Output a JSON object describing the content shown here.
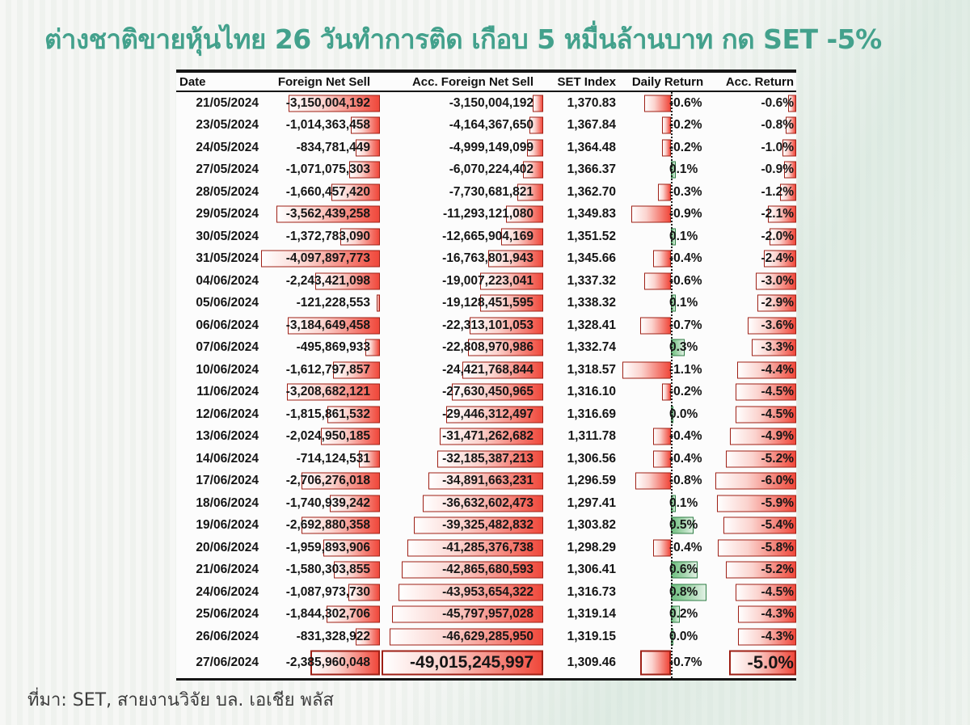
{
  "title": "ต่างชาติขายหุ้นไทย 26 วันทำการติด เกือบ 5 หมื่นล้านบาท กด SET -5%",
  "source_note": "ที่มา: SET, สายงานวิจัย บล. เอเชีย พลัส",
  "colors": {
    "title_teal": "#43a18c",
    "negative_bar": "#f0483b",
    "negative_bar_border": "#9e1f15",
    "positive_bar": "#6fbf80",
    "positive_bar_border": "#2e7d44",
    "background": "#f2f4f1",
    "text": "#161616"
  },
  "chart_data": {
    "type": "table",
    "title": "ต่างชาติขายหุ้นไทย 26 วันทำการติด เกือบ 5 หมื่นล้านบาท กด SET -5%",
    "columns": [
      "Date",
      "Foreign Net Sell",
      "Acc. Foreign Net Sell",
      "SET Index",
      "Daily Return",
      "Acc. Return"
    ],
    "data_bar_note": "red bars = negative magnitude, green bars = positive daily return, dotted zero axis in Daily Return column",
    "rows": [
      {
        "date": "21/05/2024",
        "net": "-3,150,004,192",
        "net_v": 3150004192,
        "acc": "-3,150,004,192",
        "acc_v": 3150004192,
        "set": "1,370.83",
        "dr": "-0.6%",
        "dr_v": -0.6,
        "ar": "-0.6%",
        "ar_v": 0.6
      },
      {
        "date": "23/05/2024",
        "net": "-1,014,363,458",
        "net_v": 1014363458,
        "acc": "-4,164,367,650",
        "acc_v": 4164367650,
        "set": "1,367.84",
        "dr": "-0.2%",
        "dr_v": -0.2,
        "ar": "-0.8%",
        "ar_v": 0.8
      },
      {
        "date": "24/05/2024",
        "net": "-834,781,449",
        "net_v": 834781449,
        "acc": "-4,999,149,099",
        "acc_v": 4999149099,
        "set": "1,364.48",
        "dr": "-0.2%",
        "dr_v": -0.2,
        "ar": "-1.0%",
        "ar_v": 1.0
      },
      {
        "date": "27/05/2024",
        "net": "-1,071,075,303",
        "net_v": 1071075303,
        "acc": "-6,070,224,402",
        "acc_v": 6070224402,
        "set": "1,366.37",
        "dr": "0.1%",
        "dr_v": 0.1,
        "ar": "-0.9%",
        "ar_v": 0.9
      },
      {
        "date": "28/05/2024",
        "net": "-1,660,457,420",
        "net_v": 1660457420,
        "acc": "-7,730,681,821",
        "acc_v": 7730681821,
        "set": "1,362.70",
        "dr": "-0.3%",
        "dr_v": -0.3,
        "ar": "-1.2%",
        "ar_v": 1.2
      },
      {
        "date": "29/05/2024",
        "net": "-3,562,439,258",
        "net_v": 3562439258,
        "acc": "-11,293,121,080",
        "acc_v": 11293121080,
        "set": "1,349.83",
        "dr": "-0.9%",
        "dr_v": -0.9,
        "ar": "-2.1%",
        "ar_v": 2.1
      },
      {
        "date": "30/05/2024",
        "net": "-1,372,783,090",
        "net_v": 1372783090,
        "acc": "-12,665,904,169",
        "acc_v": 12665904169,
        "set": "1,351.52",
        "dr": "0.1%",
        "dr_v": 0.1,
        "ar": "-2.0%",
        "ar_v": 2.0
      },
      {
        "date": "31/05/2024",
        "net": "-4,097,897,773",
        "net_v": 4097897773,
        "acc": "-16,763,801,943",
        "acc_v": 16763801943,
        "set": "1,345.66",
        "dr": "-0.4%",
        "dr_v": -0.4,
        "ar": "-2.4%",
        "ar_v": 2.4
      },
      {
        "date": "04/06/2024",
        "net": "-2,243,421,098",
        "net_v": 2243421098,
        "acc": "-19,007,223,041",
        "acc_v": 19007223041,
        "set": "1,337.32",
        "dr": "-0.6%",
        "dr_v": -0.6,
        "ar": "-3.0%",
        "ar_v": 3.0
      },
      {
        "date": "05/06/2024",
        "net": "-121,228,553",
        "net_v": 121228553,
        "acc": "-19,128,451,595",
        "acc_v": 19128451595,
        "set": "1,338.32",
        "dr": "0.1%",
        "dr_v": 0.1,
        "ar": "-2.9%",
        "ar_v": 2.9
      },
      {
        "date": "06/06/2024",
        "net": "-3,184,649,458",
        "net_v": 3184649458,
        "acc": "-22,313,101,053",
        "acc_v": 22313101053,
        "set": "1,328.41",
        "dr": "-0.7%",
        "dr_v": -0.7,
        "ar": "-3.6%",
        "ar_v": 3.6
      },
      {
        "date": "07/06/2024",
        "net": "-495,869,933",
        "net_v": 495869933,
        "acc": "-22,808,970,986",
        "acc_v": 22808970986,
        "set": "1,332.74",
        "dr": "0.3%",
        "dr_v": 0.3,
        "ar": "-3.3%",
        "ar_v": 3.3
      },
      {
        "date": "10/06/2024",
        "net": "-1,612,797,857",
        "net_v": 1612797857,
        "acc": "-24,421,768,844",
        "acc_v": 24421768844,
        "set": "1,318.57",
        "dr": "-1.1%",
        "dr_v": -1.1,
        "ar": "-4.4%",
        "ar_v": 4.4
      },
      {
        "date": "11/06/2024",
        "net": "-3,208,682,121",
        "net_v": 3208682121,
        "acc": "-27,630,450,965",
        "acc_v": 27630450965,
        "set": "1,316.10",
        "dr": "-0.2%",
        "dr_v": -0.2,
        "ar": "-4.5%",
        "ar_v": 4.5
      },
      {
        "date": "12/06/2024",
        "net": "-1,815,861,532",
        "net_v": 1815861532,
        "acc": "-29,446,312,497",
        "acc_v": 29446312497,
        "set": "1,316.69",
        "dr": "0.0%",
        "dr_v": 0.0,
        "ar": "-4.5%",
        "ar_v": 4.5
      },
      {
        "date": "13/06/2024",
        "net": "-2,024,950,185",
        "net_v": 2024950185,
        "acc": "-31,471,262,682",
        "acc_v": 31471262682,
        "set": "1,311.78",
        "dr": "-0.4%",
        "dr_v": -0.4,
        "ar": "-4.9%",
        "ar_v": 4.9
      },
      {
        "date": "14/06/2024",
        "net": "-714,124,531",
        "net_v": 714124531,
        "acc": "-32,185,387,213",
        "acc_v": 32185387213,
        "set": "1,306.56",
        "dr": "-0.4%",
        "dr_v": -0.4,
        "ar": "-5.2%",
        "ar_v": 5.2
      },
      {
        "date": "17/06/2024",
        "net": "-2,706,276,018",
        "net_v": 2706276018,
        "acc": "-34,891,663,231",
        "acc_v": 34891663231,
        "set": "1,296.59",
        "dr": "-0.8%",
        "dr_v": -0.8,
        "ar": "-6.0%",
        "ar_v": 6.0
      },
      {
        "date": "18/06/2024",
        "net": "-1,740,939,242",
        "net_v": 1740939242,
        "acc": "-36,632,602,473",
        "acc_v": 36632602473,
        "set": "1,297.41",
        "dr": "0.1%",
        "dr_v": 0.1,
        "ar": "-5.9%",
        "ar_v": 5.9
      },
      {
        "date": "19/06/2024",
        "net": "-2,692,880,358",
        "net_v": 2692880358,
        "acc": "-39,325,482,832",
        "acc_v": 39325482832,
        "set": "1,303.82",
        "dr": "0.5%",
        "dr_v": 0.5,
        "ar": "-5.4%",
        "ar_v": 5.4
      },
      {
        "date": "20/06/2024",
        "net": "-1,959,893,906",
        "net_v": 1959893906,
        "acc": "-41,285,376,738",
        "acc_v": 41285376738,
        "set": "1,298.29",
        "dr": "-0.4%",
        "dr_v": -0.4,
        "ar": "-5.8%",
        "ar_v": 5.8
      },
      {
        "date": "21/06/2024",
        "net": "-1,580,303,855",
        "net_v": 1580303855,
        "acc": "-42,865,680,593",
        "acc_v": 42865680593,
        "set": "1,306.41",
        "dr": "0.6%",
        "dr_v": 0.6,
        "ar": "-5.2%",
        "ar_v": 5.2
      },
      {
        "date": "24/06/2024",
        "net": "-1,087,973,730",
        "net_v": 1087973730,
        "acc": "-43,953,654,322",
        "acc_v": 43953654322,
        "set": "1,316.73",
        "dr": "0.8%",
        "dr_v": 0.8,
        "ar": "-4.5%",
        "ar_v": 4.5
      },
      {
        "date": "25/06/2024",
        "net": "-1,844,302,706",
        "net_v": 1844302706,
        "acc": "-45,797,957,028",
        "acc_v": 45797957028,
        "set": "1,319.14",
        "dr": "0.2%",
        "dr_v": 0.2,
        "ar": "-4.3%",
        "ar_v": 4.3
      },
      {
        "date": "26/06/2024",
        "net": "-831,328,922",
        "net_v": 831328922,
        "acc": "-46,629,285,950",
        "acc_v": 46629285950,
        "set": "1,319.15",
        "dr": "0.0%",
        "dr_v": 0.0,
        "ar": "-4.3%",
        "ar_v": 4.3
      },
      {
        "date": "27/06/2024",
        "net": "-2,385,960,048",
        "net_v": 2385960048,
        "acc": "-49,015,245,997",
        "acc_v": 49015245997,
        "set": "1,309.46",
        "dr": "-0.7%",
        "dr_v": -0.7,
        "ar": "-5.0%",
        "ar_v": 5.0
      }
    ]
  }
}
